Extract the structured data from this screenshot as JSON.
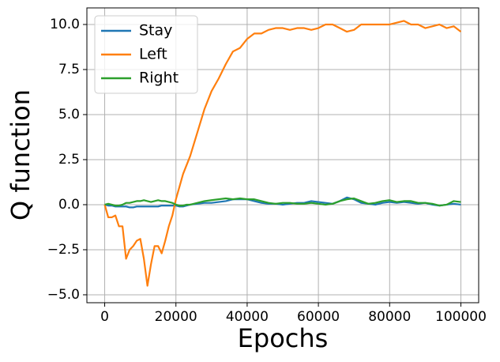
{
  "chart_data": {
    "type": "line",
    "xlabel": "Epochs",
    "ylabel": "Q function",
    "x": [
      0,
      1000,
      2000,
      3000,
      4000,
      5000,
      6000,
      7000,
      8000,
      9000,
      10000,
      11000,
      12000,
      13000,
      14000,
      15000,
      16000,
      17000,
      18000,
      19000,
      20000,
      21000,
      22000,
      23000,
      24000,
      26000,
      28000,
      30000,
      32000,
      34000,
      36000,
      38000,
      40000,
      42000,
      44000,
      46000,
      48000,
      50000,
      52000,
      54000,
      56000,
      58000,
      60000,
      62000,
      64000,
      66000,
      68000,
      70000,
      72000,
      74000,
      76000,
      78000,
      80000,
      82000,
      84000,
      86000,
      88000,
      90000,
      92000,
      94000,
      96000,
      98000,
      100000
    ],
    "series": [
      {
        "name": "Stay",
        "color": "#1f77b4",
        "values": [
          0,
          -0.05,
          -0.05,
          -0.1,
          -0.1,
          -0.1,
          -0.1,
          -0.15,
          -0.15,
          -0.1,
          -0.1,
          -0.1,
          -0.1,
          -0.1,
          -0.1,
          -0.1,
          -0.05,
          -0.05,
          -0.05,
          -0.05,
          -0.05,
          -0.1,
          -0.1,
          -0.05,
          0.0,
          0.05,
          0.1,
          0.1,
          0.15,
          0.2,
          0.3,
          0.3,
          0.3,
          0.2,
          0.1,
          0.05,
          0.05,
          0.0,
          0.05,
          0.1,
          0.1,
          0.2,
          0.15,
          0.1,
          0.05,
          0.2,
          0.4,
          0.3,
          0.1,
          0.05,
          0.0,
          0.1,
          0.15,
          0.1,
          0.15,
          0.1,
          0.05,
          0.1,
          0.0,
          -0.05,
          0.0,
          0.05,
          0.0
        ]
      },
      {
        "name": "Left",
        "color": "#ff7f0e",
        "values": [
          0,
          -0.7,
          -0.7,
          -0.6,
          -1.2,
          -1.2,
          -3.0,
          -2.5,
          -2.3,
          -2.0,
          -1.9,
          -3.0,
          -4.5,
          -3.3,
          -2.3,
          -2.3,
          -2.7,
          -2.0,
          -1.2,
          -0.6,
          0.3,
          1.0,
          1.7,
          2.2,
          2.7,
          4.0,
          5.3,
          6.3,
          7.0,
          7.8,
          8.5,
          8.7,
          9.2,
          9.5,
          9.5,
          9.7,
          9.8,
          9.8,
          9.7,
          9.8,
          9.8,
          9.7,
          9.8,
          10.0,
          10.0,
          9.8,
          9.6,
          9.7,
          10.0,
          10.0,
          10.0,
          10.0,
          10.0,
          10.1,
          10.2,
          10.0,
          10.0,
          9.8,
          9.9,
          10.0,
          9.8,
          9.9,
          9.6
        ]
      },
      {
        "name": "Right",
        "color": "#2ca02c",
        "values": [
          0,
          0.05,
          0.0,
          -0.05,
          -0.05,
          0.0,
          0.1,
          0.1,
          0.15,
          0.2,
          0.2,
          0.25,
          0.2,
          0.15,
          0.2,
          0.25,
          0.2,
          0.2,
          0.15,
          0.1,
          0.0,
          -0.05,
          -0.05,
          0.0,
          0.0,
          0.1,
          0.2,
          0.25,
          0.3,
          0.35,
          0.3,
          0.35,
          0.3,
          0.3,
          0.2,
          0.1,
          0.05,
          0.1,
          0.1,
          0.05,
          0.05,
          0.1,
          0.05,
          0.0,
          0.05,
          0.2,
          0.3,
          0.35,
          0.2,
          0.05,
          0.1,
          0.2,
          0.25,
          0.15,
          0.2,
          0.2,
          0.1,
          0.1,
          0.05,
          -0.05,
          0.0,
          0.2,
          0.15
        ]
      }
    ],
    "xlim": [
      -5000,
      105000
    ],
    "xticks": [
      0,
      20000,
      40000,
      60000,
      80000,
      100000
    ],
    "ylim": [
      -5.44,
      10.92
    ],
    "yticks": [
      {
        "value": -5,
        "label": "−5.0"
      },
      {
        "value": -2.5,
        "label": "−2.5"
      },
      {
        "value": 0,
        "label": "0.0"
      },
      {
        "value": 2.5,
        "label": "2.5"
      },
      {
        "value": 5,
        "label": "5.0"
      },
      {
        "value": 7.5,
        "label": "7.5"
      },
      {
        "value": 10,
        "label": "10.0"
      }
    ],
    "grid": true,
    "legend": "upper left"
  }
}
